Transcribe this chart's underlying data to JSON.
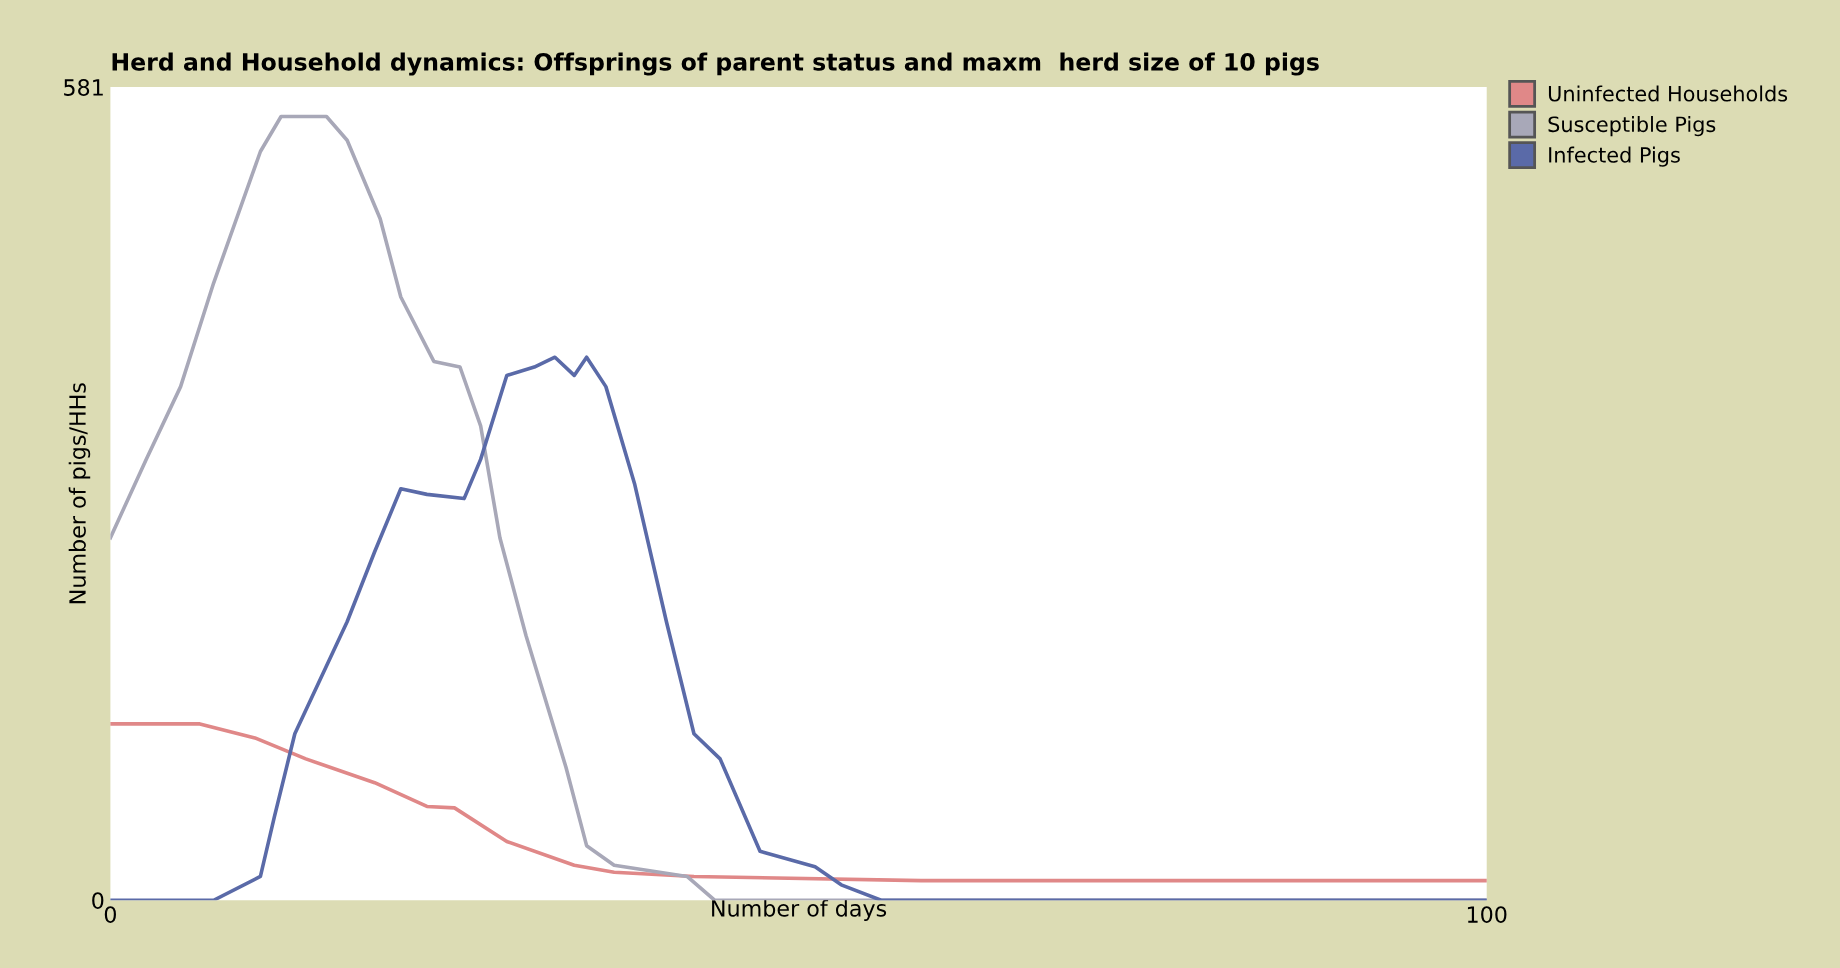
{
  "chart_data": {
    "type": "line",
    "title": "Herd and Household dynamics: Offsprings of parent status and maxm  herd size of 10 pigs",
    "xlabel": "Number of days",
    "ylabel": "Number of pigs/HHs",
    "xlim": [
      0,
      100
    ],
    "ylim": [
      0,
      581
    ],
    "xticks": [
      0,
      100
    ],
    "yticks": [
      0,
      581
    ],
    "grid": false,
    "legend": "top right",
    "marker": "none",
    "line_style": "solid",
    "series": [
      {
        "name": "Uninfected Households",
        "color": "#e08888",
        "x": [
          0,
          6.5,
          10.5,
          14.2,
          19.2,
          23,
          25,
          28.8,
          33.7,
          36.6,
          42.4,
          58.9,
          100
        ],
        "values": [
          126,
          126,
          116,
          101,
          84,
          67,
          66,
          42,
          25,
          20,
          17,
          14,
          14
        ]
      },
      {
        "name": "Susceptible Pigs",
        "color": "#a8a8b8",
        "x": [
          0,
          2.6,
          5.1,
          7.5,
          10.9,
          12.4,
          15.7,
          17.2,
          19.6,
          21.1,
          23.5,
          25.4,
          26.9,
          28.3,
          30.2,
          33.1,
          34.6,
          36.6,
          41.9,
          43.9,
          100
        ],
        "values": [
          259,
          315,
          367,
          441,
          535,
          560,
          560,
          543,
          487,
          431,
          385,
          381,
          339,
          259,
          189,
          95,
          39,
          25,
          17,
          0,
          0
        ]
      },
      {
        "name": "Infected Pigs",
        "color": "#5a6aa8",
        "x": [
          0,
          7.5,
          10.9,
          11.9,
          13.4,
          17.2,
          19.2,
          21.1,
          23,
          25.7,
          26.9,
          28.8,
          30.8,
          32.3,
          33.7,
          34.6,
          36,
          38.1,
          40.4,
          42.4,
          44.3,
          47.2,
          51.2,
          53.1,
          56,
          100
        ],
        "values": [
          0,
          0,
          17,
          59,
          119,
          199,
          249,
          294,
          290,
          287,
          315,
          375,
          381,
          388,
          375,
          388,
          367,
          297,
          199,
          119,
          101,
          35,
          24,
          11,
          0,
          0
        ]
      }
    ]
  }
}
